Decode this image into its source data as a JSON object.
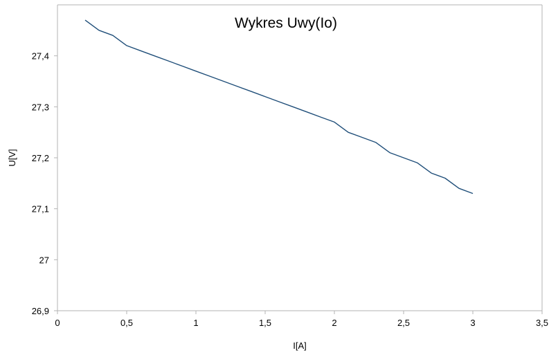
{
  "chart_data": {
    "type": "line",
    "title": "Wykres Uwy(Io)",
    "xlabel": "I[A]",
    "ylabel": "U[V]",
    "xlim": [
      0,
      3.5
    ],
    "ylim": [
      26.9,
      27.5
    ],
    "x_ticks": [
      0,
      0.5,
      1,
      1.5,
      2,
      2.5,
      3,
      3.5
    ],
    "x_tick_labels": [
      "0",
      "0,5",
      "1",
      "1,5",
      "2",
      "2,5",
      "3",
      "3,5"
    ],
    "y_ticks": [
      26.9,
      27.0,
      27.1,
      27.2,
      27.3,
      27.4
    ],
    "y_tick_labels": [
      "26,9",
      "27",
      "27,1",
      "27,2",
      "27,3",
      "27,4"
    ],
    "grid": false,
    "legend": "none",
    "series_color": "#1f4e79",
    "series": [
      {
        "x": [
          0.2,
          0.3,
          0.4,
          0.5,
          0.6,
          0.7,
          0.8,
          0.9,
          1.0,
          1.1,
          1.2,
          1.3,
          1.4,
          1.5,
          1.6,
          1.7,
          1.8,
          1.9,
          2.0,
          2.1,
          2.2,
          2.3,
          2.4,
          2.5,
          2.6,
          2.7,
          2.8,
          2.9,
          3.0
        ],
        "values": [
          27.47,
          27.45,
          27.44,
          27.42,
          27.41,
          27.4,
          27.39,
          27.38,
          27.37,
          27.36,
          27.35,
          27.34,
          27.33,
          27.32,
          27.31,
          27.3,
          27.29,
          27.28,
          27.27,
          27.25,
          27.24,
          27.23,
          27.21,
          27.2,
          27.19,
          27.17,
          27.16,
          27.14,
          27.13
        ]
      }
    ]
  }
}
